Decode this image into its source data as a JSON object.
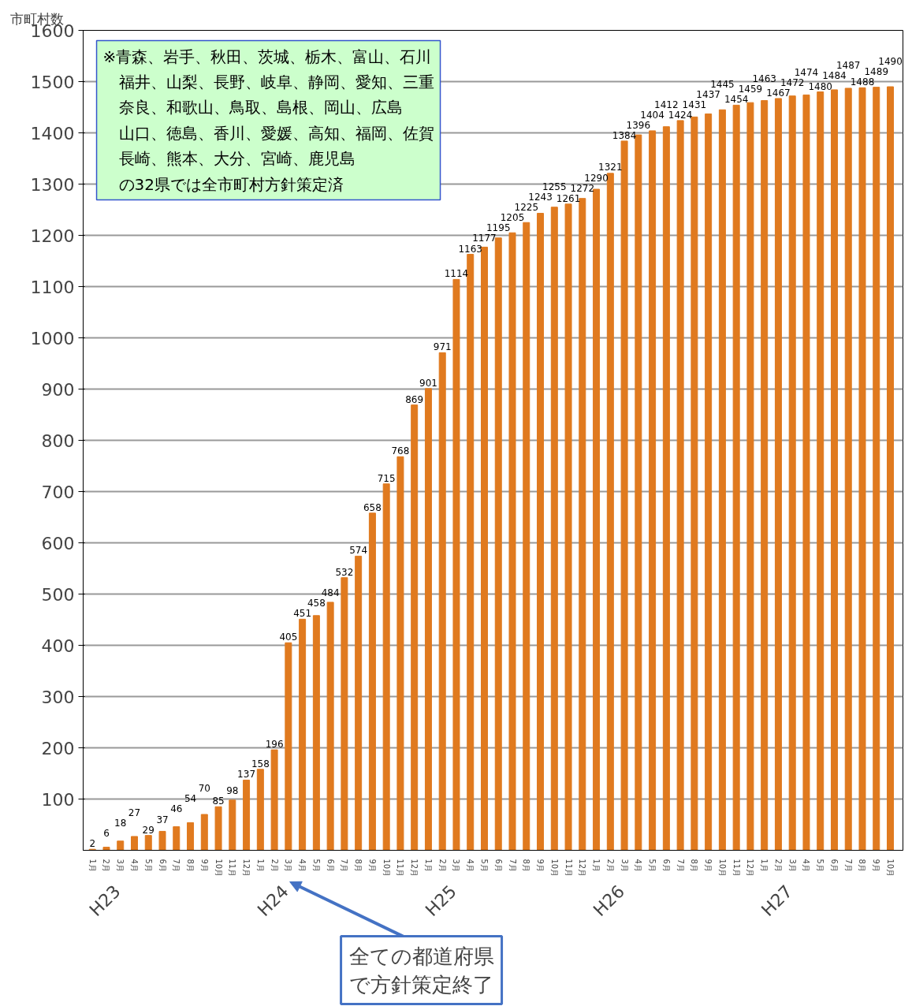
{
  "chart_data": {
    "type": "bar",
    "ylabel": "市町村数",
    "categories": [
      "1月",
      "2月",
      "3月",
      "4月",
      "5月",
      "6月",
      "7月",
      "8月",
      "9月",
      "10月",
      "11月",
      "12月",
      "1月",
      "2月",
      "3月",
      "4月",
      "5月",
      "6月",
      "7月",
      "8月",
      "9月",
      "10月",
      "11月",
      "12月",
      "1月",
      "2月",
      "3月",
      "4月",
      "5月",
      "6月",
      "7月",
      "8月",
      "9月",
      "10月",
      "11月",
      "12月",
      "1月",
      "2月",
      "3月",
      "4月",
      "5月",
      "6月",
      "7月",
      "8月",
      "9月",
      "10月",
      "11月",
      "12月",
      "1月",
      "2月",
      "3月",
      "4月",
      "5月",
      "6月",
      "7月",
      "8月",
      "9月",
      "10月"
    ],
    "values": [
      2,
      6,
      18,
      27,
      29,
      37,
      46,
      54,
      70,
      85,
      98,
      137,
      158,
      196,
      405,
      451,
      458,
      484,
      532,
      574,
      658,
      715,
      768,
      869,
      901,
      971,
      1114,
      1163,
      1177,
      1195,
      1205,
      1225,
      1243,
      1255,
      1261,
      1272,
      1290,
      1321,
      1384,
      1396,
      1404,
      1412,
      1424,
      1431,
      1437,
      1445,
      1454,
      1459,
      1463,
      1467,
      1472,
      1474,
      1480,
      1484,
      1487,
      1488,
      1489,
      1490
    ],
    "color": "#e07a1f",
    "ylim": [
      0,
      1600
    ],
    "yticks": [
      100,
      200,
      300,
      400,
      500,
      600,
      700,
      800,
      900,
      1000,
      1100,
      1200,
      1300,
      1400,
      1500,
      1600
    ],
    "grid": "y",
    "data_labels": true,
    "annotations": [
      "※青森、岩手、秋田、茨城、栃木、富山、石川福井、山梨、長野、岐阜、静岡、愛知、三重奈良、和歌山、鳥取、島根、岡山、広島山口、徳島、香川、愛媛、高知、福岡、佐賀長崎、熊本、大分、宮崎、鹿児島の32県では全市町村方針策定済",
      "H23",
      "H24",
      "H25",
      "H26",
      "H27",
      "全ての都道府県で方針策定終了"
    ]
  }
}
